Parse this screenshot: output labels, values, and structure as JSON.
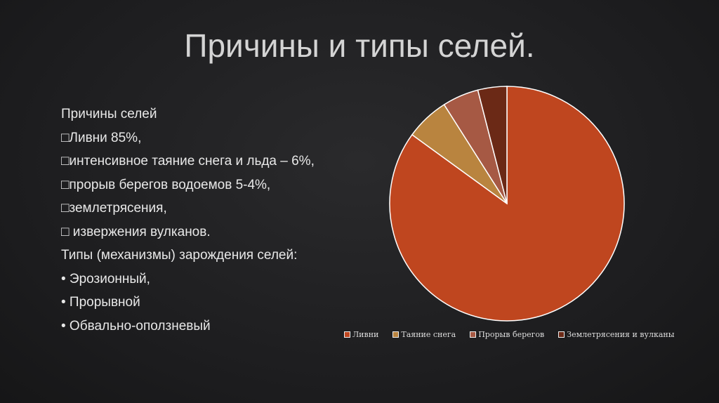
{
  "title": "Причины и типы селей.",
  "body": {
    "heading1": "Причины селей",
    "causes": [
      "Ливни 85%,",
      "интенсивное таяние снега и льда – 6%,",
      "прорыв берегов водоемов 5-4%,",
      "землетрясения,",
      " извержения вулканов."
    ],
    "bullet_box": "□",
    "heading2": "Типы (механизмы) зарождения селей:",
    "types": [
      "• Эрозионный,",
      "• Прорывной",
      "• Обвально-оползневый"
    ]
  },
  "chart_data": {
    "type": "pie",
    "categories": [
      "Ливни",
      "Таяние снега",
      "Прорыв берегов",
      "Землетрясения и вулканы"
    ],
    "values": [
      85,
      6,
      5,
      4
    ],
    "colors": [
      "#BF461F",
      "#B9843F",
      "#A65944",
      "#6B2916"
    ],
    "start_angle": "12 o'clock, clockwise",
    "legend": "bottom"
  }
}
